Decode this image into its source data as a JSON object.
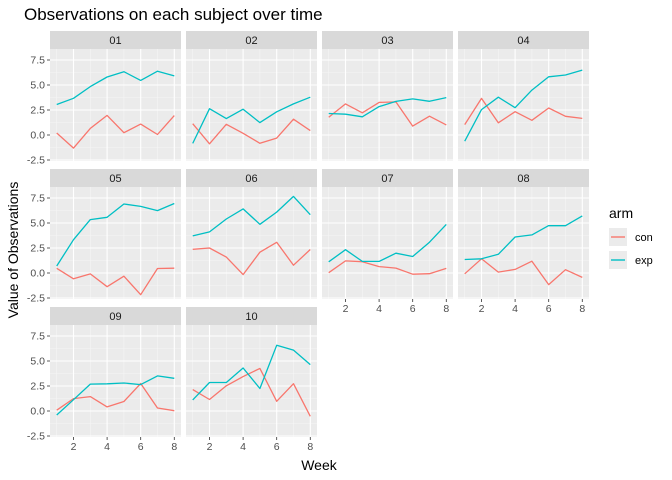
{
  "chart_data": {
    "type": "line",
    "title": "Observations on each subject over time",
    "xlabel": "Week",
    "ylabel": "Value of Observations",
    "xlim": [
      0.6,
      8.4
    ],
    "ylim": [
      -2.6,
      8.6
    ],
    "x_ticks": [
      2,
      4,
      6,
      8
    ],
    "y_ticks": [
      -2.5,
      0.0,
      2.5,
      5.0,
      7.5
    ],
    "y_tick_labels": [
      "-2.5",
      "0.0",
      "2.5",
      "5.0",
      "7.5"
    ],
    "grid": true,
    "facet_layout": "4 columns x 3 rows",
    "legend": {
      "title": "arm",
      "position": "right",
      "entries": [
        {
          "label": "con",
          "color": "#F8766D"
        },
        {
          "label": "exp",
          "color": "#00BFC4"
        }
      ]
    },
    "x": [
      1,
      2,
      3,
      4,
      5,
      6,
      7,
      8
    ],
    "panels": [
      {
        "subject": "01",
        "series": [
          {
            "name": "con",
            "values": [
              0.2,
              -1.31,
              0.66,
              1.96,
              0.23,
              1.09,
              0.05,
              1.94
            ]
          },
          {
            "name": "exp",
            "values": [
              3.05,
              3.67,
              4.84,
              5.8,
              6.33,
              5.46,
              6.38,
              5.91
            ]
          }
        ]
      },
      {
        "subject": "02",
        "series": [
          {
            "name": "con",
            "values": [
              1.13,
              -0.88,
              1.07,
              0.17,
              -0.83,
              -0.31,
              1.58,
              0.44
            ]
          },
          {
            "name": "exp",
            "values": [
              -0.84,
              2.63,
              1.64,
              2.58,
              1.24,
              2.32,
              3.11,
              3.78
            ]
          }
        ]
      },
      {
        "subject": "03",
        "series": [
          {
            "name": "con",
            "values": [
              1.77,
              3.11,
              2.22,
              3.26,
              3.31,
              0.89,
              1.88,
              1.01
            ]
          },
          {
            "name": "exp",
            "values": [
              2.15,
              2.08,
              1.82,
              2.84,
              3.36,
              3.61,
              3.37,
              3.74
            ]
          }
        ]
      },
      {
        "subject": "04",
        "series": [
          {
            "name": "con",
            "values": [
              1.04,
              3.66,
              1.22,
              2.33,
              1.47,
              2.7,
              1.87,
              1.66
            ]
          },
          {
            "name": "exp",
            "values": [
              -0.62,
              2.54,
              3.78,
              2.73,
              4.49,
              5.82,
              6.0,
              6.49
            ]
          }
        ]
      },
      {
        "subject": "05",
        "series": [
          {
            "name": "con",
            "values": [
              0.47,
              -0.58,
              -0.09,
              -1.37,
              -0.32,
              -2.17,
              0.45,
              0.48
            ]
          },
          {
            "name": "exp",
            "values": [
              0.7,
              3.33,
              5.34,
              5.57,
              6.9,
              6.66,
              6.24,
              6.95
            ]
          }
        ]
      },
      {
        "subject": "06",
        "series": [
          {
            "name": "con",
            "values": [
              2.37,
              2.5,
              1.59,
              -0.16,
              2.08,
              3.07,
              0.78,
              2.35
            ]
          },
          {
            "name": "exp",
            "values": [
              3.71,
              4.11,
              5.4,
              6.41,
              4.87,
              6.09,
              7.66,
              5.83
            ]
          }
        ]
      },
      {
        "subject": "07",
        "series": [
          {
            "name": "con",
            "values": [
              0.03,
              1.21,
              1.13,
              0.64,
              0.49,
              -0.12,
              -0.07,
              0.46
            ]
          },
          {
            "name": "exp",
            "values": [
              1.12,
              2.33,
              1.16,
              1.16,
              1.98,
              1.65,
              3.08,
              4.86
            ]
          }
        ]
      },
      {
        "subject": "08",
        "series": [
          {
            "name": "con",
            "values": [
              -0.08,
              1.42,
              0.09,
              0.36,
              1.18,
              -1.16,
              0.33,
              -0.44
            ]
          },
          {
            "name": "exp",
            "values": [
              1.35,
              1.42,
              1.87,
              3.6,
              3.81,
              4.74,
              4.73,
              5.71
            ]
          }
        ]
      },
      {
        "subject": "09",
        "series": [
          {
            "name": "con",
            "values": [
              0.08,
              1.24,
              1.44,
              0.41,
              0.95,
              2.75,
              0.3,
              0.03
            ]
          },
          {
            "name": "exp",
            "values": [
              -0.4,
              1.13,
              2.69,
              2.72,
              2.8,
              2.64,
              3.51,
              3.27
            ]
          }
        ]
      },
      {
        "subject": "10",
        "series": [
          {
            "name": "con",
            "values": [
              2.14,
              1.15,
              2.52,
              3.44,
              4.26,
              0.97,
              2.73,
              -0.53
            ]
          },
          {
            "name": "exp",
            "values": [
              1.11,
              2.85,
              2.85,
              4.3,
              2.25,
              6.57,
              6.09,
              4.64
            ]
          }
        ]
      }
    ]
  }
}
